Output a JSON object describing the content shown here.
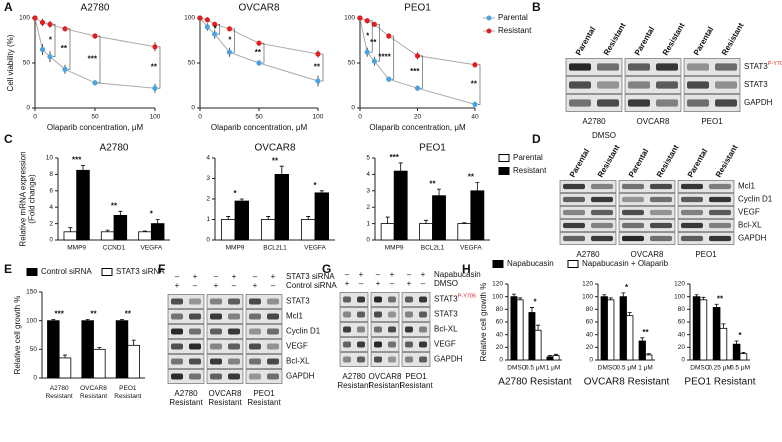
{
  "panel_labels": [
    "A",
    "B",
    "C",
    "D",
    "E",
    "F",
    "G",
    "H"
  ],
  "panel_b_caption": "DMSO",
  "chart_data": [
    {
      "type": "line",
      "title": "A2780",
      "ylabel": "Cell viability (%)",
      "xlabel": "Olaparib concentration, μM",
      "x": [
        0,
        6.25,
        12.5,
        25,
        50,
        100
      ],
      "xlim": [
        0,
        100
      ],
      "xticks": [
        0,
        50,
        100
      ],
      "ylim": [
        0,
        100
      ],
      "yticks": [
        0,
        50,
        100
      ],
      "line_color": "#aaaaaa",
      "series": [
        {
          "color": "#4aa3df",
          "values": [
            100,
            65,
            57,
            43,
            28,
            22
          ],
          "errors": [
            2,
            6,
            6,
            5,
            3,
            5
          ]
        },
        {
          "color": "#e02020",
          "values": [
            100,
            95,
            93,
            88,
            80,
            68
          ],
          "errors": [
            2,
            4,
            4,
            3,
            3,
            5
          ]
        }
      ],
      "significance": [
        null,
        null,
        "*",
        "**",
        "***",
        "**"
      ]
    },
    {
      "type": "line",
      "title": "OVCAR8",
      "xlabel": "Olaparib concentration, μM",
      "x": [
        0,
        6.25,
        12.5,
        25,
        50,
        100
      ],
      "xlim": [
        0,
        100
      ],
      "xticks": [
        0,
        50,
        100
      ],
      "ylim": [
        0,
        100
      ],
      "yticks": [
        0,
        50,
        100
      ],
      "line_color": "#aaaaaa",
      "series": [
        {
          "color": "#4aa3df",
          "values": [
            100,
            90,
            82,
            62,
            50,
            30
          ],
          "errors": [
            2,
            4,
            5,
            5,
            3,
            6
          ]
        },
        {
          "color": "#e02020",
          "values": [
            100,
            98,
            93,
            88,
            72,
            60
          ],
          "errors": [
            2,
            3,
            3,
            3,
            3,
            4
          ]
        }
      ],
      "significance": [
        null,
        null,
        "*",
        "*",
        "**",
        "**"
      ]
    },
    {
      "type": "line",
      "title": "PEO1",
      "xlabel": "Olaparib concentration, μM",
      "x": [
        0,
        2.5,
        5,
        10,
        20,
        40
      ],
      "xlim": [
        0,
        40
      ],
      "xticks": [
        0,
        20,
        40
      ],
      "ylim": [
        0,
        100
      ],
      "yticks": [
        0,
        50,
        100
      ],
      "line_color": "#aaaaaa",
      "legend": "right",
      "series": [
        {
          "name": "Parental",
          "color": "#4aa3df",
          "values": [
            100,
            62,
            52,
            32,
            22,
            4
          ],
          "errors": [
            2,
            5,
            5,
            3,
            3,
            3
          ]
        },
        {
          "name": "Resistant",
          "color": "#e02020",
          "values": [
            100,
            97,
            93,
            80,
            58,
            48
          ],
          "errors": [
            2,
            3,
            3,
            3,
            4,
            3
          ]
        }
      ],
      "significance": [
        null,
        "*",
        "**",
        "****",
        "***",
        "**"
      ]
    },
    {
      "type": "bar",
      "title": "A2780",
      "ylabel": [
        "Relative mRNA expression",
        "(Fold change)"
      ],
      "categories": [
        "MMP9",
        "CCND1",
        "VEGFA"
      ],
      "ylim": [
        0,
        10
      ],
      "yticks": [
        0,
        2,
        4,
        6,
        8,
        10
      ],
      "series": [
        {
          "color": "#ffffff",
          "values": [
            1,
            1,
            1
          ],
          "errors": [
            0.5,
            0.2,
            0.1
          ]
        },
        {
          "color": "#000000",
          "values": [
            8.5,
            3,
            2
          ],
          "errors": [
            0.6,
            0.5,
            0.5
          ]
        }
      ],
      "significance": [
        "***",
        "**",
        "*"
      ]
    },
    {
      "type": "bar",
      "title": "OVCAR8",
      "categories": [
        "MMP9",
        "BCL2L1",
        "VEGFA"
      ],
      "ylim": [
        0,
        4
      ],
      "yticks": [
        0,
        1,
        2,
        3,
        4
      ],
      "series": [
        {
          "color": "#ffffff",
          "values": [
            1,
            1,
            1
          ],
          "errors": [
            0.15,
            0.15,
            0.15
          ]
        },
        {
          "color": "#000000",
          "values": [
            1.9,
            3.2,
            2.3
          ],
          "errors": [
            0.1,
            0.4,
            0.1
          ]
        }
      ],
      "significance": [
        "*",
        "**",
        "*"
      ]
    },
    {
      "type": "bar",
      "title": "PEO1",
      "legend": "right",
      "categories": [
        "MMP9",
        "BCL2L1",
        "VEGFA"
      ],
      "ylim": [
        0,
        5
      ],
      "yticks": [
        0,
        1,
        2,
        3,
        4,
        5
      ],
      "series": [
        {
          "name": "Parental",
          "color": "#ffffff",
          "values": [
            1,
            1,
            1
          ],
          "errors": [
            0.4,
            0.2,
            0.05
          ]
        },
        {
          "name": "Resistant",
          "color": "#000000",
          "values": [
            4.2,
            2.7,
            3.0
          ],
          "errors": [
            0.5,
            0.4,
            0.5
          ]
        }
      ],
      "significance": [
        "***",
        "**",
        "**"
      ]
    },
    {
      "type": "bar",
      "ylabel": "Relative cell growth %",
      "legend": "top",
      "categories": [
        [
          "A2780",
          "Resistant"
        ],
        [
          "OVCAR8",
          "Resistant"
        ],
        [
          "PEO1",
          "Resistant"
        ]
      ],
      "ylim": [
        0,
        150
      ],
      "yticks": [
        0,
        50,
        100,
        150
      ],
      "series": [
        {
          "name": "Control siRNA",
          "color": "#000000",
          "values": [
            100,
            100,
            100
          ],
          "errors": [
            2,
            2,
            2
          ]
        },
        {
          "name": "STAT3 siRNA",
          "color": "#ffffff",
          "values": [
            35,
            50,
            57
          ],
          "errors": [
            5,
            3,
            9
          ]
        }
      ],
      "significance": [
        "***",
        "**",
        "**"
      ]
    },
    {
      "type": "bar",
      "title": "A2780 Resistant",
      "ylabel": "Relative cell growth %",
      "legend": "top",
      "categories": [
        "DMSO",
        "0.5 μM",
        "1 μM"
      ],
      "ylim": [
        0,
        120
      ],
      "yticks": [
        0,
        20,
        40,
        60,
        80,
        100,
        120
      ],
      "series": [
        {
          "name": "Napabucasin",
          "color": "#000000",
          "values": [
            100,
            75,
            5
          ],
          "errors": [
            4,
            8,
            2
          ]
        },
        {
          "name": "Napabucasin + Olaparib",
          "color": "#ffffff",
          "values": [
            95,
            47,
            7
          ],
          "errors": [
            3,
            8,
            2
          ]
        }
      ],
      "significance": [
        null,
        "*",
        null
      ]
    },
    {
      "type": "bar",
      "title": "OVCAR8 Resistant",
      "categories": [
        "DMSO",
        "0.5 μM",
        "1 μM"
      ],
      "ylim": [
        0,
        120
      ],
      "yticks": [
        0,
        20,
        40,
        60,
        80,
        100,
        120
      ],
      "series": [
        {
          "color": "#000000",
          "values": [
            100,
            100,
            30
          ],
          "errors": [
            3,
            6,
            5
          ]
        },
        {
          "color": "#ffffff",
          "values": [
            95,
            70,
            8
          ],
          "errors": [
            3,
            5,
            2
          ]
        }
      ],
      "significance": [
        null,
        "*",
        "**"
      ]
    },
    {
      "type": "bar",
      "title": "PEO1 Resistant",
      "categories": [
        "DMSO",
        "0.25 μM",
        "0.5 μM"
      ],
      "ylim": [
        0,
        120
      ],
      "yticks": [
        0,
        20,
        40,
        60,
        80,
        100,
        120
      ],
      "series": [
        {
          "color": "#000000",
          "values": [
            100,
            83,
            25
          ],
          "errors": [
            3,
            5,
            5
          ]
        },
        {
          "color": "#ffffff",
          "values": [
            95,
            50,
            10
          ],
          "errors": [
            4,
            7,
            2
          ]
        }
      ],
      "significance": [
        null,
        "**",
        "*"
      ]
    }
  ],
  "blots": [
    {
      "columns": [
        "Parental",
        "Resistant",
        "Parental",
        "Resistant",
        "Parental",
        "Resistant"
      ],
      "rows": [
        {
          "label": "STAT3",
          "superscript": "P-Y705"
        },
        {
          "label": "STAT3"
        },
        {
          "label": "GAPDH"
        }
      ],
      "cell_lines": [
        [
          "A2780"
        ],
        [
          "OVCAR8"
        ],
        [
          "PEO1"
        ]
      ]
    },
    {
      "columns": [
        "Parental",
        "Resistant",
        "Parental",
        "Resistant",
        "Parental",
        "Resistant"
      ],
      "rows": [
        {
          "label": "Mcl1"
        },
        {
          "label": "Cyclin D1"
        },
        {
          "label": "VEGF"
        },
        {
          "label": "Bcl-XL"
        },
        {
          "label": "GAPDH"
        }
      ],
      "cell_lines": [
        [
          "A2780"
        ],
        [
          "OVCAR8"
        ],
        [
          "PEO1"
        ]
      ]
    },
    {
      "treatments": [
        {
          "label": "STAT3 siRNA",
          "signs": [
            "–",
            "+",
            "–",
            "+",
            "–",
            "+"
          ]
        },
        {
          "label": "Control siRNA",
          "signs": [
            "+",
            "–",
            "+",
            "–",
            "+",
            "–"
          ]
        }
      ],
      "rows": [
        {
          "label": "STAT3"
        },
        {
          "label": "Mcl1"
        },
        {
          "label": "Cyclin D1"
        },
        {
          "label": "VEGF"
        },
        {
          "label": "Bcl-XL"
        },
        {
          "label": "GAPDH"
        }
      ],
      "cell_lines": [
        [
          "A2780",
          "Resistant"
        ],
        [
          "OVCAR8",
          "Resistant"
        ],
        [
          "PEO1",
          "Resistant"
        ]
      ]
    },
    {
      "treatments": [
        {
          "label": "Napabucasin",
          "signs": [
            "–",
            "+",
            "–",
            "+",
            "–",
            "+"
          ]
        },
        {
          "label": "DMSO",
          "signs": [
            "+",
            "–",
            "+",
            "–",
            "+",
            "–"
          ]
        }
      ],
      "rows": [
        {
          "label": "STAT3",
          "superscript": "P-Y705"
        },
        {
          "label": "STAT3"
        },
        {
          "label": "Bcl-XL"
        },
        {
          "label": "VEGF"
        },
        {
          "label": "GAPDH"
        }
      ],
      "cell_lines": [
        [
          "A2780",
          "Resistant"
        ],
        [
          "OVCAR8",
          "Resistant"
        ],
        [
          "PEO1",
          "Resistant"
        ]
      ]
    }
  ]
}
